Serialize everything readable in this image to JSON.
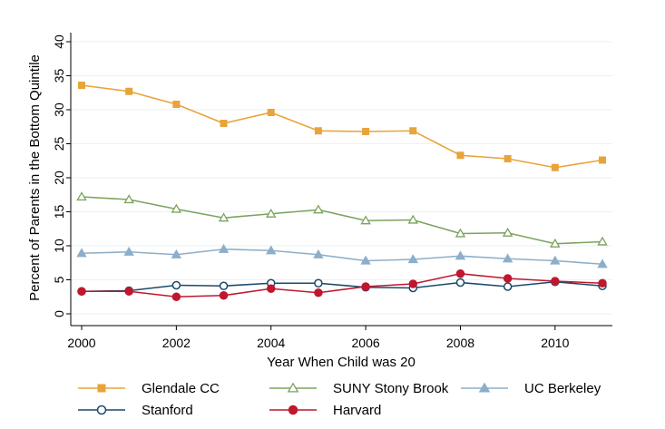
{
  "chart_data": {
    "type": "line",
    "title": "",
    "xlabel": "Year When Child was 20",
    "ylabel": "Percent of Parents in the Bottom Quintile",
    "xlim": [
      2000,
      2011
    ],
    "ylim": [
      0,
      40
    ],
    "x_ticks": [
      2000,
      2002,
      2004,
      2006,
      2008,
      2010
    ],
    "y_ticks": [
      0,
      5,
      10,
      15,
      20,
      25,
      30,
      35,
      40
    ],
    "grid": true,
    "legend_position": "bottom",
    "x": [
      2000,
      2001,
      2002,
      2003,
      2004,
      2005,
      2006,
      2007,
      2008,
      2009,
      2010,
      2011
    ],
    "series": [
      {
        "name": "Glendale CC",
        "color": "#e8a43a",
        "marker": "square",
        "values": [
          33.6,
          32.7,
          30.8,
          28.0,
          29.6,
          26.9,
          26.8,
          26.9,
          23.3,
          22.8,
          21.5,
          22.6
        ]
      },
      {
        "name": "SUNY Stony Brook",
        "color": "#7ca35e",
        "marker": "triangle-open",
        "values": [
          17.2,
          16.8,
          15.4,
          14.1,
          14.7,
          15.3,
          13.7,
          13.8,
          11.8,
          11.9,
          10.3,
          10.6
        ]
      },
      {
        "name": "UC Berkeley",
        "color": "#8daec9",
        "marker": "triangle",
        "values": [
          8.9,
          9.1,
          8.7,
          9.5,
          9.3,
          8.7,
          7.8,
          8.0,
          8.5,
          8.1,
          7.8,
          7.3
        ]
      },
      {
        "name": "Stanford",
        "color": "#1b4a6b",
        "marker": "circle-open",
        "values": [
          3.3,
          3.4,
          4.2,
          4.1,
          4.5,
          4.5,
          3.9,
          3.8,
          4.6,
          4.0,
          4.7,
          4.1
        ]
      },
      {
        "name": "Harvard",
        "color": "#c0172f",
        "marker": "circle",
        "values": [
          3.3,
          3.3,
          2.5,
          2.7,
          3.7,
          3.1,
          4.0,
          4.4,
          5.9,
          5.2,
          4.8,
          4.5
        ]
      }
    ]
  }
}
